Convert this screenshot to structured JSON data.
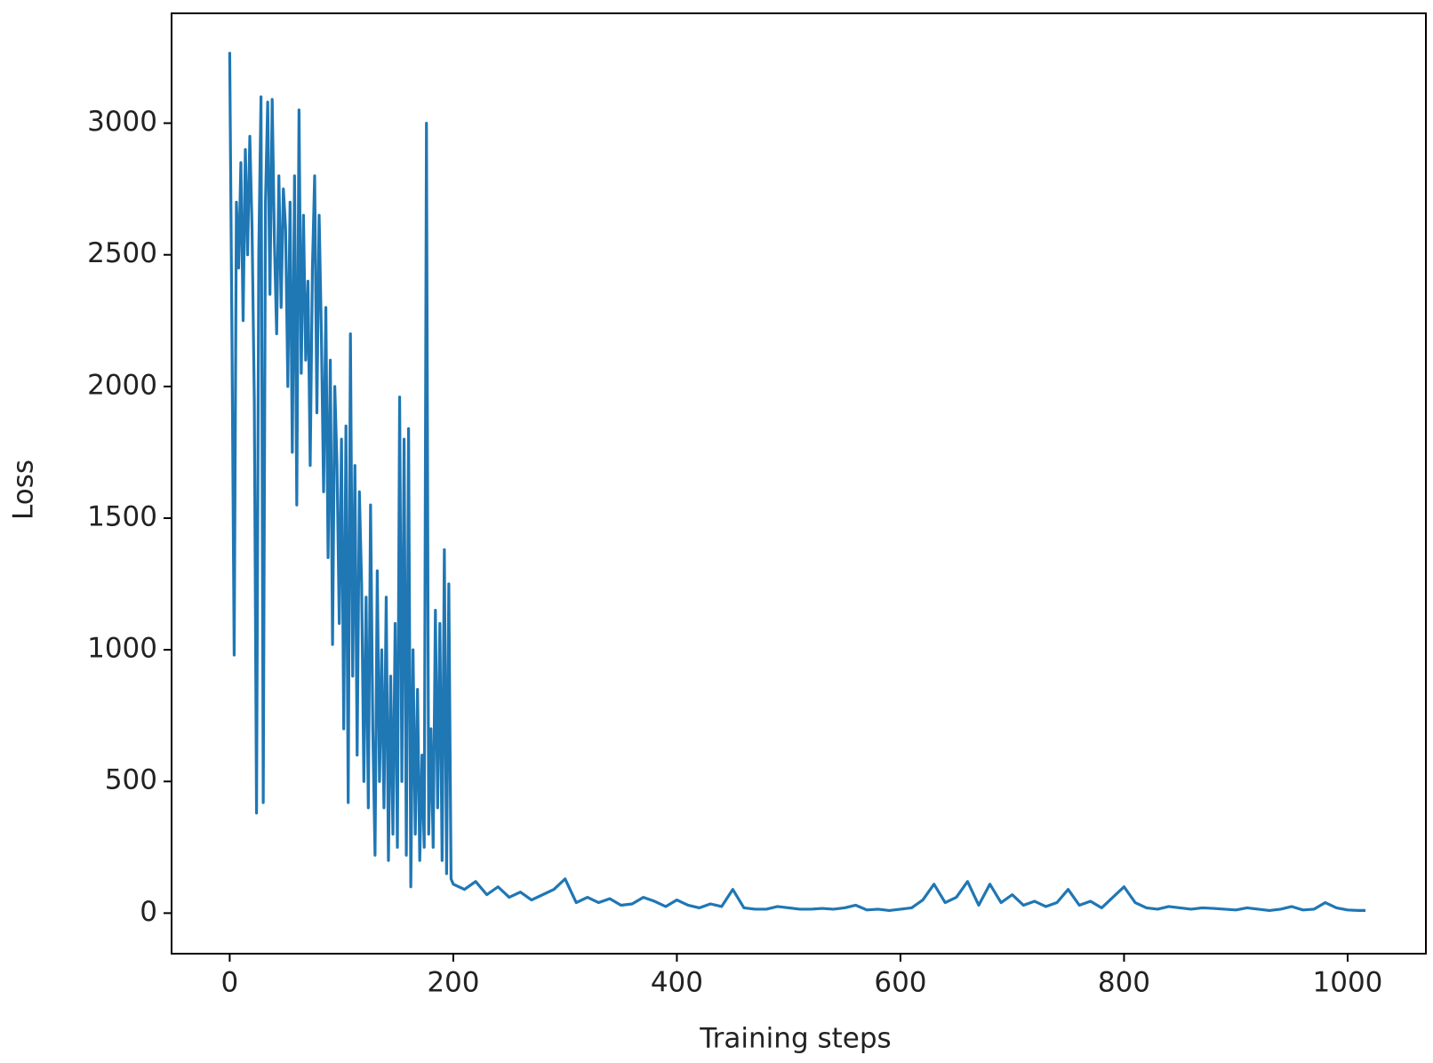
{
  "chart_data": {
    "type": "line",
    "xlabel": "Training steps",
    "ylabel": "Loss",
    "color": "#1f77b4",
    "xlim": [
      -52,
      1070
    ],
    "ylim": [
      -154,
      3417
    ],
    "xticks": [
      0,
      200,
      400,
      600,
      800,
      1000
    ],
    "yticks": [
      0,
      500,
      1000,
      1500,
      2000,
      2500,
      3000
    ],
    "grid": false,
    "x": [
      0,
      2,
      4,
      6,
      8,
      10,
      12,
      14,
      16,
      18,
      20,
      22,
      24,
      26,
      28,
      30,
      32,
      34,
      36,
      38,
      40,
      42,
      44,
      46,
      48,
      50,
      52,
      54,
      56,
      58,
      60,
      62,
      64,
      66,
      68,
      70,
      72,
      74,
      76,
      78,
      80,
      82,
      84,
      86,
      88,
      90,
      92,
      94,
      96,
      98,
      100,
      102,
      104,
      106,
      108,
      110,
      112,
      114,
      116,
      118,
      120,
      122,
      124,
      126,
      128,
      130,
      132,
      134,
      136,
      138,
      140,
      142,
      144,
      146,
      148,
      150,
      152,
      154,
      156,
      158,
      160,
      162,
      164,
      166,
      168,
      170,
      172,
      174,
      176,
      178,
      180,
      182,
      184,
      186,
      188,
      190,
      192,
      194,
      196,
      198,
      200,
      210,
      220,
      230,
      240,
      250,
      260,
      270,
      280,
      290,
      300,
      310,
      320,
      330,
      340,
      350,
      360,
      370,
      380,
      390,
      400,
      410,
      420,
      430,
      440,
      450,
      460,
      470,
      480,
      490,
      500,
      510,
      520,
      530,
      540,
      550,
      560,
      570,
      580,
      590,
      600,
      610,
      620,
      630,
      640,
      650,
      660,
      670,
      680,
      690,
      700,
      710,
      720,
      730,
      740,
      750,
      760,
      770,
      780,
      790,
      800,
      810,
      820,
      830,
      840,
      850,
      860,
      870,
      880,
      890,
      900,
      910,
      920,
      930,
      940,
      950,
      960,
      970,
      980,
      990,
      1000,
      1010,
      1016
    ],
    "values": [
      3270,
      2200,
      980,
      2700,
      2450,
      2850,
      2250,
      2900,
      2500,
      2950,
      2600,
      1950,
      380,
      2500,
      3100,
      420,
      2700,
      3080,
      2350,
      3090,
      2550,
      2200,
      2800,
      2300,
      2750,
      2600,
      2000,
      2700,
      1750,
      2800,
      1550,
      3050,
      2050,
      2650,
      2100,
      2400,
      1700,
      2450,
      2800,
      1900,
      2650,
      2200,
      1600,
      2300,
      1350,
      2100,
      1020,
      2000,
      1700,
      1100,
      1800,
      700,
      1850,
      420,
      2200,
      900,
      1700,
      600,
      1600,
      1250,
      500,
      1200,
      400,
      1550,
      700,
      220,
      1300,
      500,
      1000,
      400,
      1200,
      200,
      900,
      300,
      1100,
      250,
      1960,
      500,
      1800,
      220,
      1840,
      100,
      1000,
      300,
      850,
      200,
      600,
      250,
      3000,
      300,
      700,
      250,
      1150,
      400,
      1100,
      200,
      1380,
      150,
      1250,
      130,
      110,
      90,
      120,
      70,
      100,
      60,
      80,
      50,
      70,
      90,
      130,
      40,
      60,
      40,
      55,
      30,
      35,
      60,
      45,
      25,
      50,
      30,
      20,
      35,
      25,
      90,
      20,
      15,
      15,
      25,
      20,
      15,
      15,
      18,
      15,
      20,
      30,
      12,
      15,
      10,
      15,
      20,
      50,
      110,
      40,
      60,
      120,
      30,
      110,
      40,
      70,
      30,
      45,
      25,
      40,
      90,
      30,
      45,
      20,
      60,
      100,
      40,
      20,
      15,
      25,
      20,
      15,
      20,
      18,
      15,
      12,
      20,
      15,
      10,
      15,
      25,
      12,
      15,
      40,
      20,
      12,
      10,
      10
    ]
  }
}
